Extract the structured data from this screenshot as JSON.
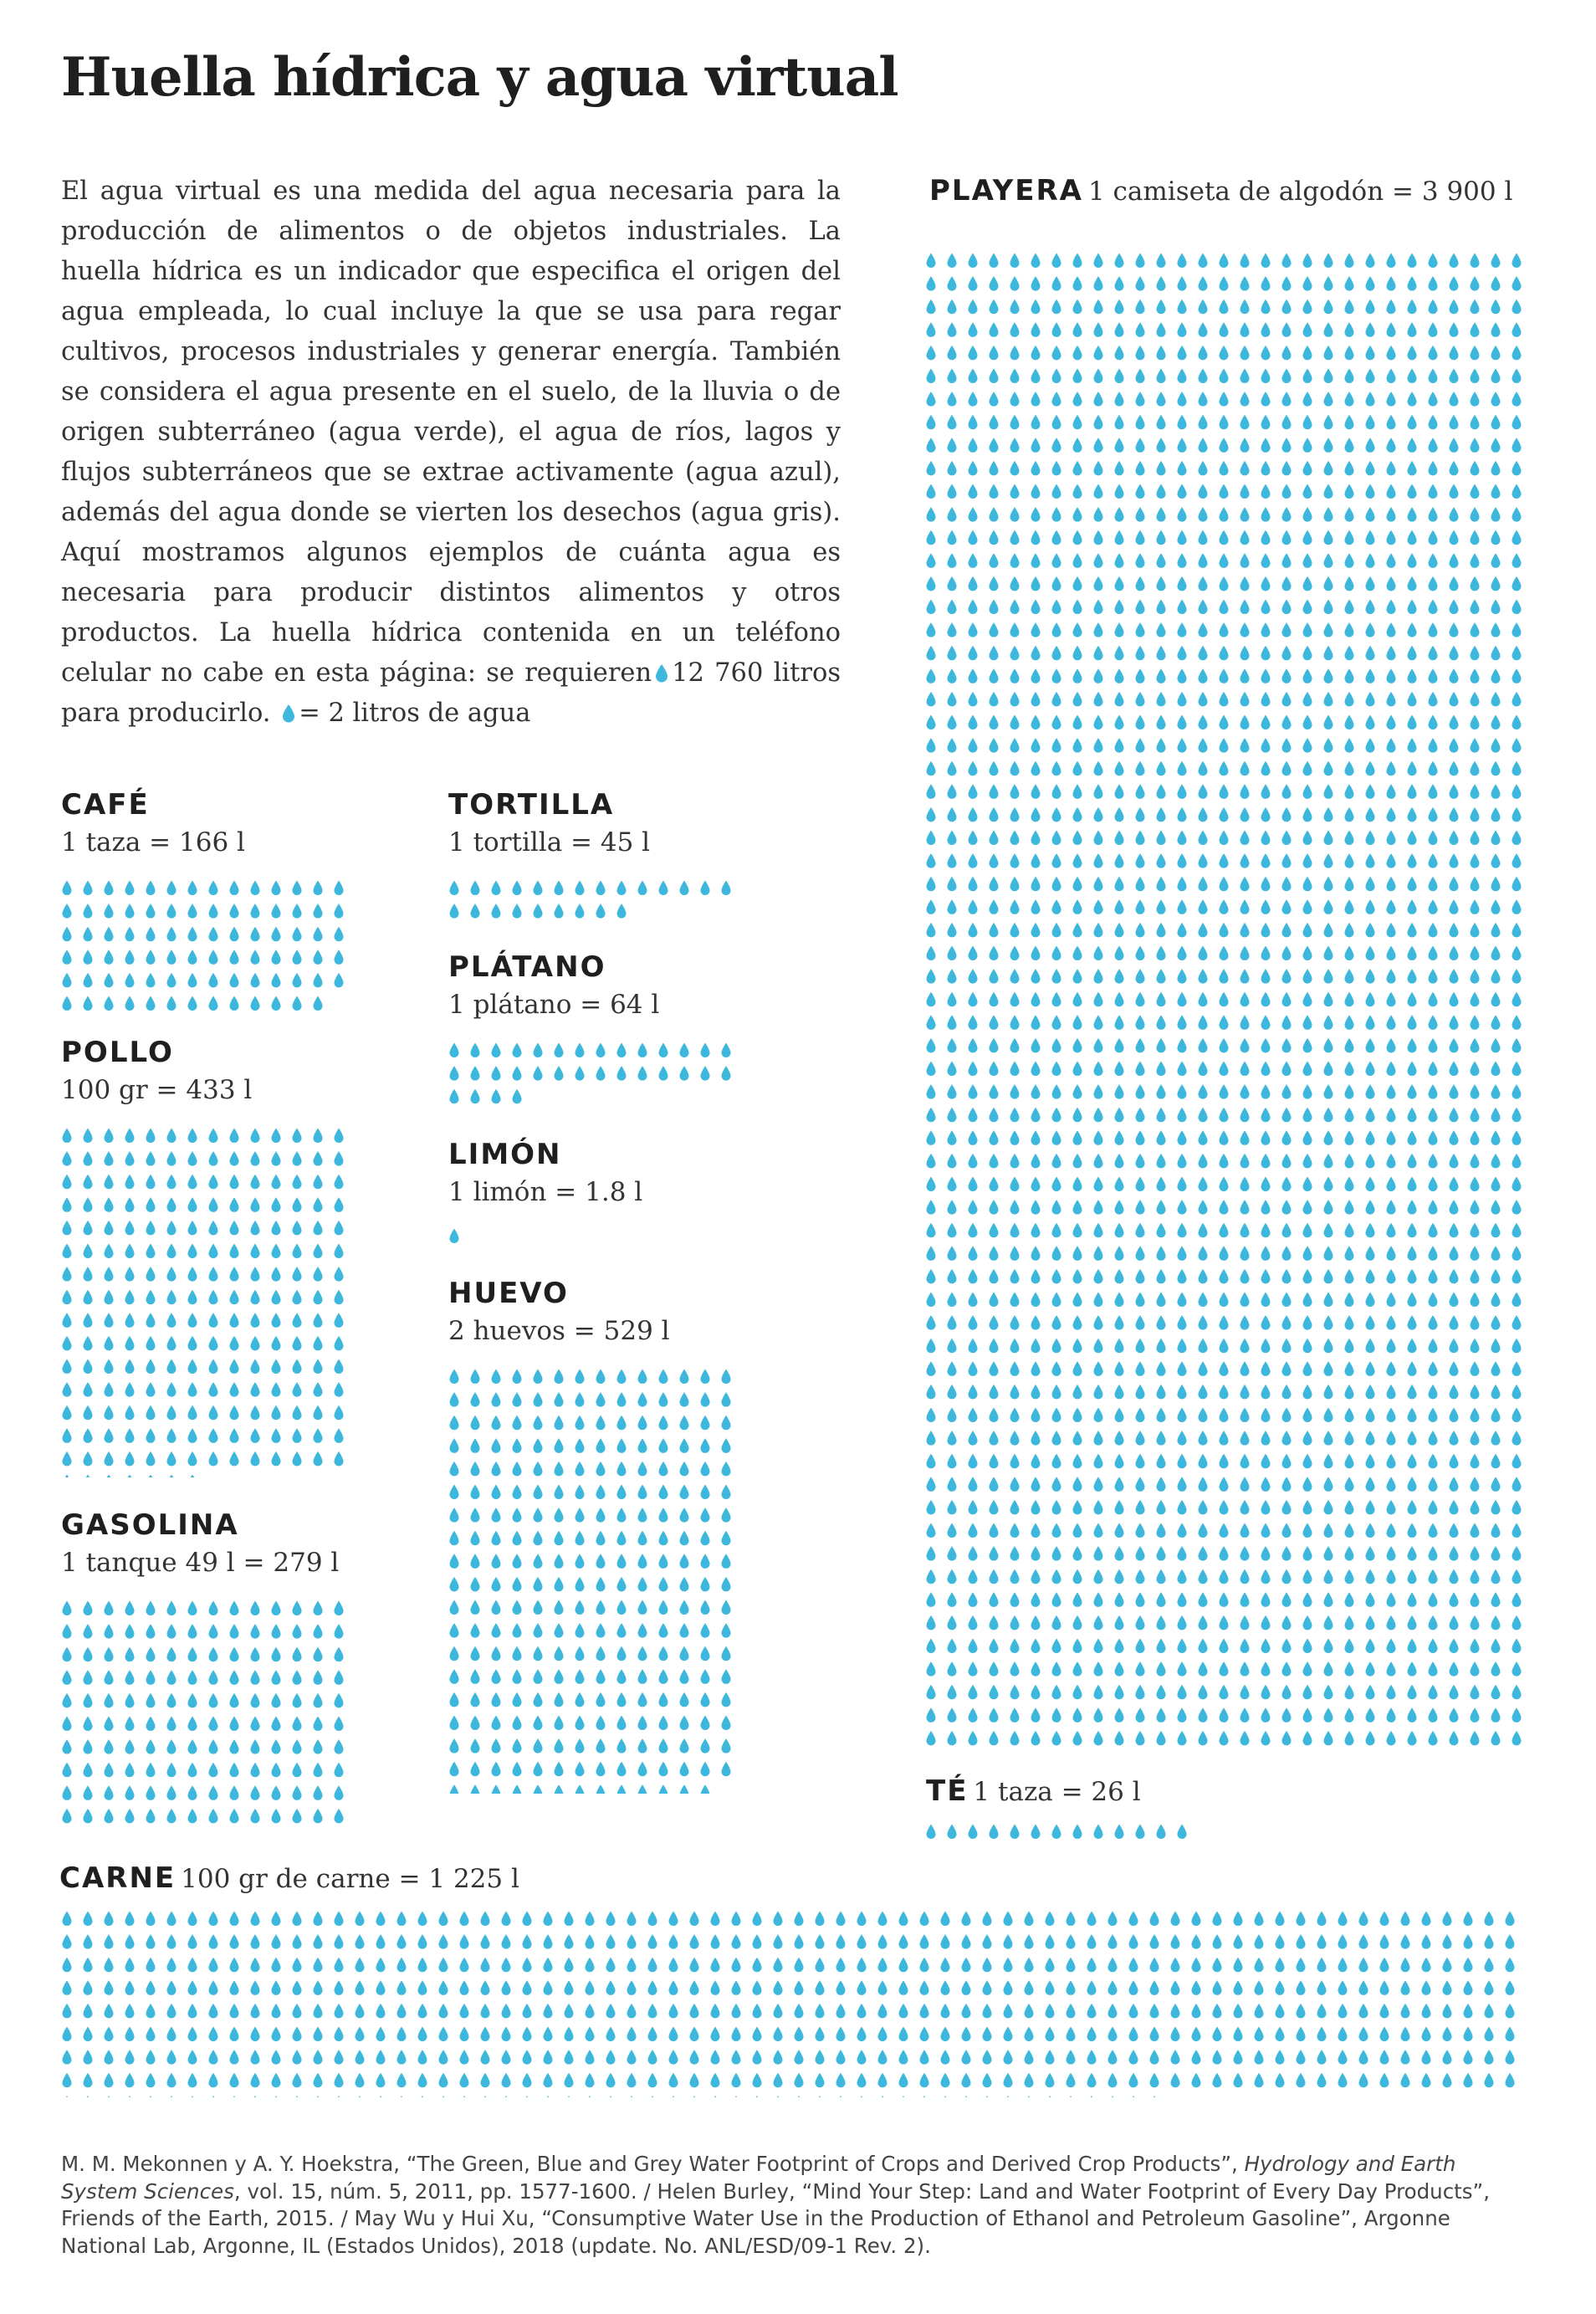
{
  "title": "Huella hídrica y agua virtual",
  "intro": {
    "text_before_drop1": "El agua virtual es una medida del agua necesaria para la producción de alimentos o de objetos industriales. La huella hídrica es un indicador que especifica el origen del agua empleada, lo cual incluye la que se usa para regar cultivos, procesos industriales y generar energía. También se considera el agua presente en el suelo, de la lluvia o de origen subterráneo (agua verde), el agua de ríos, lagos y flujos subterráneos que se extrae activamente (agua azul), además del agua donde se vierten los desechos (agua gris). Aquí mostramos algunos ejemplos de cuánta agua es necesaria para producir distintos alimentos y otros productos. La huella hídrica contenida en un teléfono celular no cabe en esta página: se requieren",
    "phone_liters": "12 760",
    "text_after_phone": "litros para producirlo.",
    "legend_text": "= 2 litros de agua"
  },
  "colors": {
    "drop": "#3db7dc",
    "text": "#222222"
  },
  "chart_data": {
    "type": "pictograph",
    "unit": "litros",
    "liters_per_drop": 2,
    "items": [
      {
        "name": "CAFÉ",
        "label": "1 taza = 166 l",
        "liters": 166,
        "drops": 83
      },
      {
        "name": "TORTILLA",
        "label": "1 tortilla = 45 l",
        "liters": 45,
        "drops": 23
      },
      {
        "name": "PLÁTANO",
        "label": "1 plátano = 64 l",
        "liters": 64,
        "drops": 32
      },
      {
        "name": "POLLO",
        "label": "100 gr = 433 l",
        "liters": 433,
        "drops": 217
      },
      {
        "name": "LIMÓN",
        "label": "1 limón = 1.8 l",
        "liters": 1.8,
        "drops": 1
      },
      {
        "name": "HUEVO",
        "label": "2 huevos = 529 l",
        "liters": 529,
        "drops": 265
      },
      {
        "name": "GASOLINA",
        "label": "1 tanque 49 l = 279 l",
        "liters": 279,
        "drops": 140
      },
      {
        "name": "PLAYERA",
        "label": "1 camiseta de algodón = 3 900 l",
        "liters": 3900,
        "drops": 1950
      },
      {
        "name": "TÉ",
        "label": "1 taza = 26 l",
        "liters": 26,
        "drops": 13
      },
      {
        "name": "CARNE",
        "label": "100 gr de carne = 1 225 l",
        "liters": 1225,
        "drops": 613
      }
    ]
  },
  "sources": {
    "part1": "M. M. Mekonnen y A. Y. Hoekstra, “The Green, Blue and Grey Water Footprint of Crops and Derived Crop Products”,",
    "journal": "Hydrology and Earth System Sciences",
    "part2": ", vol. 15, núm. 5, 2011, pp. 1577-1600. / Helen Burley, “Mind Your Step: Land and Water Footprint of Every Day Products”, Friends of the Earth, 2015. / May Wu y Hui Xu, “Consumptive Water Use in the Production of Ethanol and Petroleum Gasoline”, Argonne National Lab, Argonne, IL (Estados Unidos), 2018 (update. No. ANL/ESD/09-1 Rev. 2)."
  }
}
